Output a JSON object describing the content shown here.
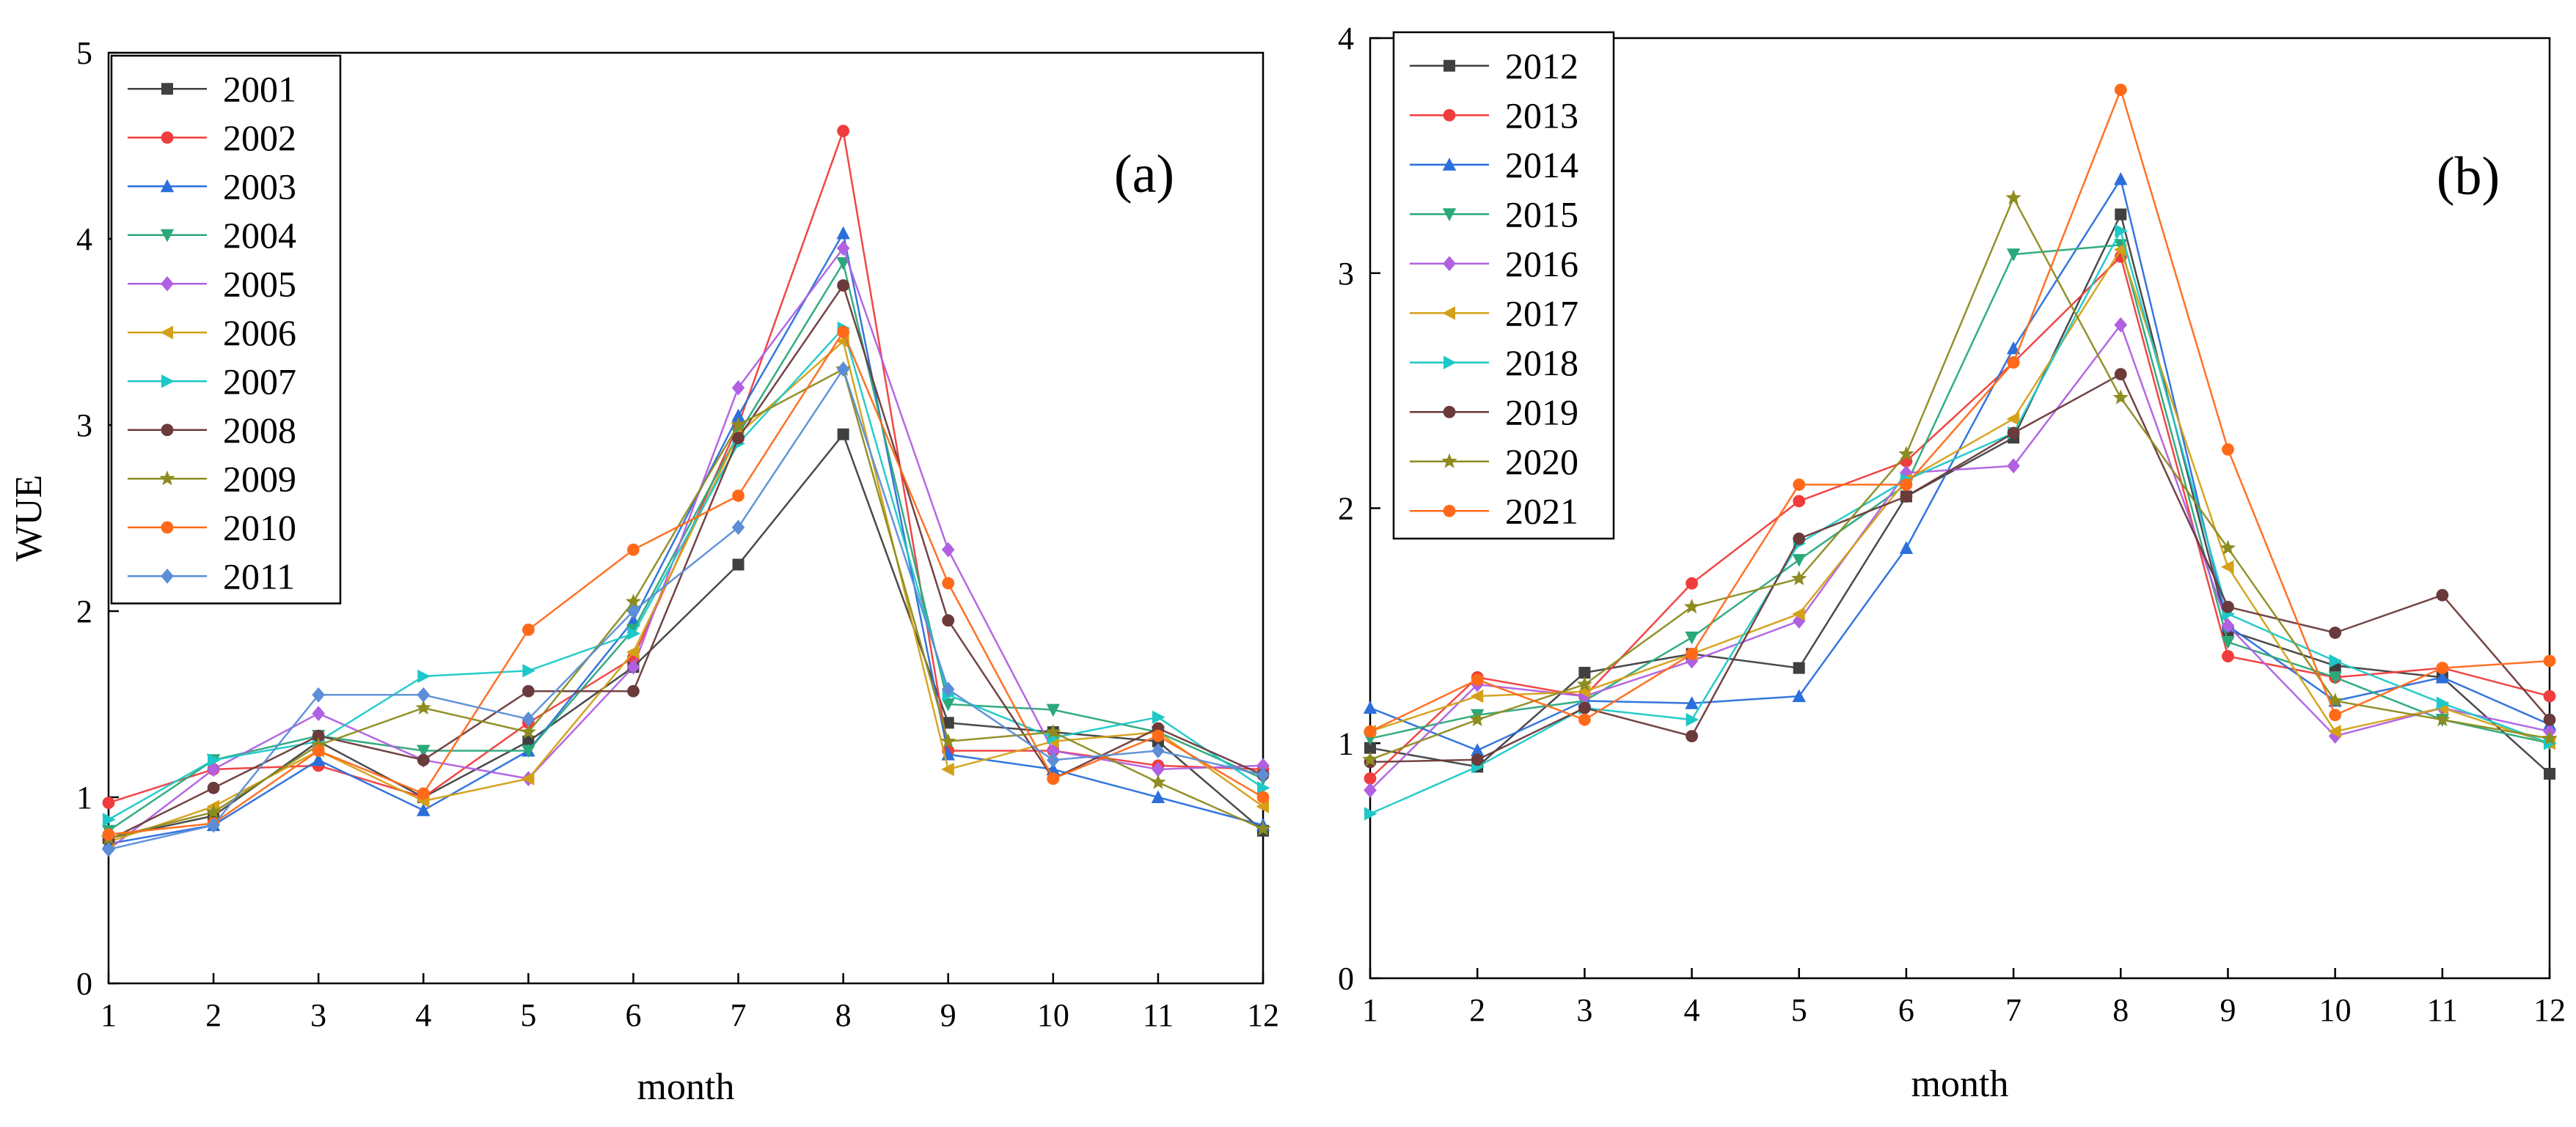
{
  "chart_data": [
    {
      "type": "line",
      "panel_label": "(a)",
      "xlabel": "month",
      "ylabel": "WUE",
      "xlim": [
        1,
        12
      ],
      "ylim": [
        0,
        5
      ],
      "x": [
        1,
        2,
        3,
        4,
        5,
        6,
        7,
        8,
        9,
        10,
        11,
        12
      ],
      "x_ticks": [
        "1",
        "2",
        "3",
        "4",
        "5",
        "6",
        "7",
        "8",
        "9",
        "10",
        "11",
        "12"
      ],
      "y_ticks": [
        "0",
        "1",
        "2",
        "3",
        "4",
        "5"
      ],
      "grid": false,
      "legend_position": "top-left",
      "series": [
        {
          "name": "2001",
          "color": "#404040",
          "marker": "square",
          "values": [
            0.78,
            0.9,
            1.3,
            1.0,
            1.3,
            1.7,
            2.25,
            2.95,
            1.4,
            1.35,
            1.3,
            0.82
          ]
        },
        {
          "name": "2002",
          "color": "#f03c3c",
          "marker": "circle",
          "values": [
            0.97,
            1.15,
            1.17,
            1.0,
            1.4,
            1.75,
            3.0,
            4.58,
            1.25,
            1.25,
            1.17,
            1.15
          ]
        },
        {
          "name": "2003",
          "color": "#2a6fdb",
          "marker": "triangle",
          "values": [
            0.75,
            0.85,
            1.2,
            0.93,
            1.25,
            1.95,
            3.05,
            4.03,
            1.23,
            1.15,
            1.0,
            0.85
          ]
        },
        {
          "name": "2004",
          "color": "#2aa87a",
          "marker": "triangle-down",
          "values": [
            0.82,
            1.2,
            1.33,
            1.25,
            1.25,
            1.9,
            2.95,
            3.87,
            1.5,
            1.47,
            1.35,
            1.1
          ]
        },
        {
          "name": "2005",
          "color": "#b060e0",
          "marker": "diamond",
          "values": [
            0.72,
            1.15,
            1.45,
            1.2,
            1.1,
            1.7,
            3.2,
            3.95,
            2.33,
            1.25,
            1.15,
            1.17
          ]
        },
        {
          "name": "2006",
          "color": "#d4a017",
          "marker": "triangle-left",
          "values": [
            0.76,
            0.95,
            1.25,
            0.98,
            1.1,
            1.78,
            2.95,
            3.45,
            1.15,
            1.3,
            1.35,
            0.95
          ]
        },
        {
          "name": "2007",
          "color": "#1ec8c8",
          "marker": "triangle-right",
          "values": [
            0.88,
            1.2,
            1.3,
            1.65,
            1.68,
            1.88,
            2.9,
            3.52,
            1.55,
            1.32,
            1.43,
            1.05
          ]
        },
        {
          "name": "2008",
          "color": "#6b3a3a",
          "marker": "circle",
          "values": [
            0.77,
            1.05,
            1.33,
            1.2,
            1.57,
            1.57,
            2.93,
            3.75,
            1.95,
            1.1,
            1.37,
            1.12
          ]
        },
        {
          "name": "2009",
          "color": "#8c8c20",
          "marker": "star",
          "values": [
            0.78,
            0.92,
            1.28,
            1.48,
            1.35,
            2.05,
            3.0,
            3.3,
            1.3,
            1.35,
            1.08,
            0.83
          ]
        },
        {
          "name": "2010",
          "color": "#ff6a1a",
          "marker": "circle",
          "values": [
            0.8,
            0.86,
            1.25,
            1.02,
            1.9,
            2.33,
            2.62,
            3.5,
            2.15,
            1.1,
            1.33,
            1.0
          ]
        },
        {
          "name": "2011",
          "color": "#5b8ed6",
          "marker": "diamond",
          "values": [
            0.72,
            0.85,
            1.55,
            1.55,
            1.42,
            2.0,
            2.45,
            3.3,
            1.58,
            1.2,
            1.25,
            1.12
          ]
        }
      ]
    },
    {
      "type": "line",
      "panel_label": "(b)",
      "xlabel": "month",
      "ylabel": "",
      "xlim": [
        1,
        12
      ],
      "ylim": [
        0,
        4
      ],
      "x": [
        1,
        2,
        3,
        4,
        5,
        6,
        7,
        8,
        9,
        10,
        11,
        12
      ],
      "x_ticks": [
        "1",
        "2",
        "3",
        "4",
        "5",
        "6",
        "7",
        "8",
        "9",
        "10",
        "11",
        "12"
      ],
      "y_ticks": [
        "0",
        "1",
        "2",
        "3",
        "4"
      ],
      "grid": false,
      "legend_position": "top-left",
      "series": [
        {
          "name": "2012",
          "color": "#404040",
          "marker": "square",
          "values": [
            0.98,
            0.9,
            1.3,
            1.38,
            1.32,
            2.05,
            2.3,
            3.25,
            1.48,
            1.33,
            1.28,
            0.87
          ]
        },
        {
          "name": "2013",
          "color": "#f03c3c",
          "marker": "circle",
          "values": [
            0.85,
            1.28,
            1.2,
            1.68,
            2.03,
            2.2,
            2.62,
            3.07,
            1.37,
            1.28,
            1.32,
            1.2
          ]
        },
        {
          "name": "2014",
          "color": "#2a6fdb",
          "marker": "triangle",
          "values": [
            1.15,
            0.97,
            1.18,
            1.17,
            1.2,
            1.83,
            2.68,
            3.4,
            1.5,
            1.18,
            1.28,
            1.08
          ]
        },
        {
          "name": "2015",
          "color": "#2aa87a",
          "marker": "triangle-down",
          "values": [
            1.02,
            1.12,
            1.18,
            1.45,
            1.78,
            2.1,
            3.08,
            3.12,
            1.43,
            1.28,
            1.1,
            1.0
          ]
        },
        {
          "name": "2016",
          "color": "#b060e0",
          "marker": "diamond",
          "values": [
            0.8,
            1.25,
            1.2,
            1.35,
            1.52,
            2.15,
            2.18,
            2.78,
            1.5,
            1.03,
            1.15,
            1.05
          ]
        },
        {
          "name": "2017",
          "color": "#d4a017",
          "marker": "triangle-left",
          "values": [
            1.05,
            1.2,
            1.22,
            1.38,
            1.55,
            2.12,
            2.38,
            3.1,
            1.75,
            1.05,
            1.15,
            1.0
          ]
        },
        {
          "name": "2018",
          "color": "#1ec8c8",
          "marker": "triangle-right",
          "values": [
            0.7,
            0.9,
            1.15,
            1.1,
            1.85,
            2.12,
            2.32,
            3.18,
            1.55,
            1.35,
            1.17,
            1.0
          ]
        },
        {
          "name": "2019",
          "color": "#6b3a3a",
          "marker": "circle",
          "values": [
            0.92,
            0.93,
            1.15,
            1.03,
            1.87,
            2.05,
            2.32,
            2.57,
            1.58,
            1.47,
            1.63,
            1.1
          ]
        },
        {
          "name": "2020",
          "color": "#8c8c20",
          "marker": "star",
          "values": [
            0.93,
            1.1,
            1.25,
            1.58,
            1.7,
            2.23,
            3.32,
            2.47,
            1.83,
            1.18,
            1.1,
            1.02
          ]
        },
        {
          "name": "2021",
          "color": "#ff6a1a",
          "marker": "circle",
          "values": [
            1.05,
            1.27,
            1.1,
            1.38,
            2.1,
            2.1,
            2.62,
            3.78,
            2.25,
            1.12,
            1.32,
            1.35
          ]
        }
      ]
    }
  ]
}
